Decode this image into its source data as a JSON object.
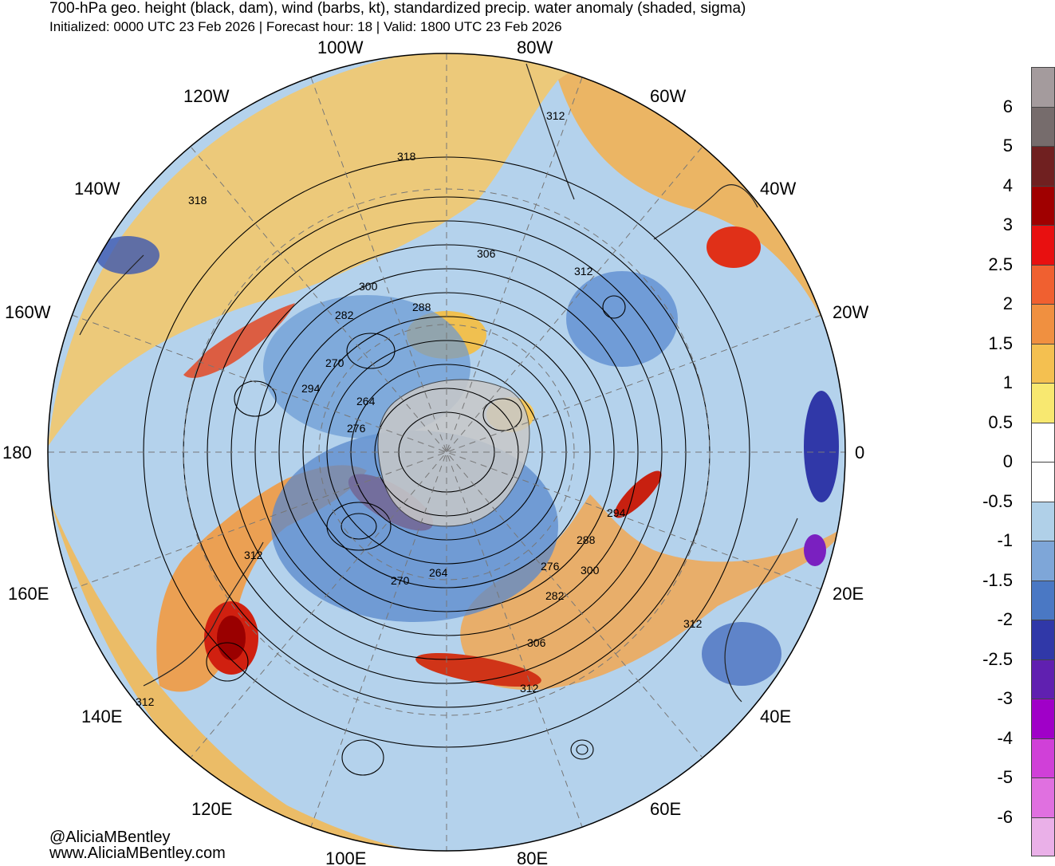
{
  "header": {
    "title": "700-hPa geo. height (black, dam), wind (barbs, kt), standardized precip. water anomaly (shaded, sigma)",
    "subtitle": "Initialized: 0000 UTC 23 Feb 2026 | Forecast hour: 18 | Valid: 1800 UTC 23 Feb 2026"
  },
  "map": {
    "projection": "south polar stereographic",
    "longitude_labels": [
      "100W",
      "80W",
      "120W",
      "60W",
      "140W",
      "40W",
      "160W",
      "20W",
      "180",
      "0",
      "160E",
      "20E",
      "140E",
      "40E",
      "120E",
      "60E",
      "100E",
      "80E"
    ],
    "height_contour_labels": [
      "312",
      "318",
      "318",
      "306",
      "312",
      "300",
      "288",
      "282",
      "270",
      "294",
      "264",
      "276",
      "294",
      "288",
      "276",
      "300",
      "282",
      "264",
      "270",
      "306",
      "312",
      "312",
      "312",
      "312"
    ],
    "land_color": "#c8c8c8"
  },
  "colorbar": {
    "tick_labels": [
      "6",
      "5",
      "4",
      "3",
      "2.5",
      "2",
      "1.5",
      "1",
      "0.5",
      "0",
      "-0.5",
      "-1",
      "-1.5",
      "-2",
      "-2.5",
      "-3",
      "-4",
      "-5",
      "-6"
    ],
    "colors": [
      "#a49b9d",
      "#766c6c",
      "#702020",
      "#a00000",
      "#e81010",
      "#f06030",
      "#f09040",
      "#f4c050",
      "#f8e870",
      "#ffffff",
      "#ffffff",
      "#b0d0e8",
      "#7ea6d8",
      "#4a78c4",
      "#3038a8",
      "#6020b0",
      "#a000c8",
      "#d040d8",
      "#e070e0",
      "#eab0e8"
    ]
  },
  "credits": {
    "handle": "@AliciaMBentley",
    "website": "www.AliciaMBentley.com"
  }
}
